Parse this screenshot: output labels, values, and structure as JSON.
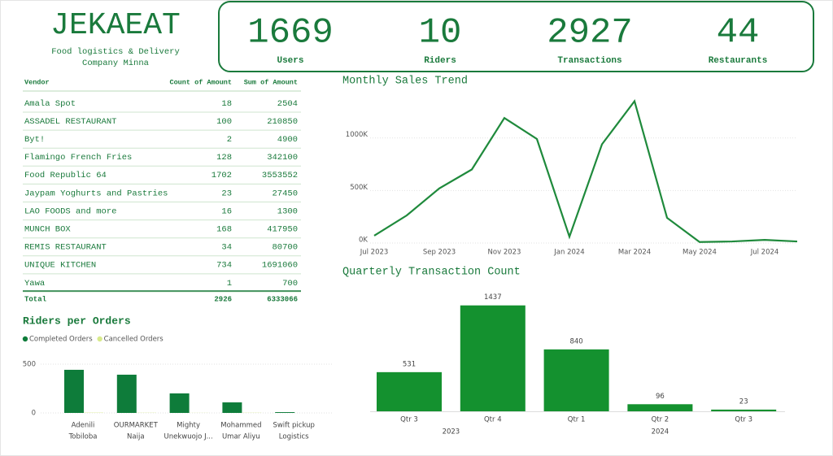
{
  "header": {
    "title": "JEKAEAT",
    "subtitle": [
      "Food logistics & Delivery",
      "Company Minna"
    ]
  },
  "kpis": [
    {
      "value": 1669,
      "label": "Users"
    },
    {
      "value": 10,
      "label": "Riders"
    },
    {
      "value": 2927,
      "label": "Transactions"
    },
    {
      "value": 44,
      "label": "Restaurants"
    }
  ],
  "table": {
    "headers": [
      "Vendor",
      "Count of Amount",
      "Sum of Amount"
    ],
    "rows": [
      [
        "Amala Spot",
        18,
        2504
      ],
      [
        "ASSADEL RESTAURANT",
        100,
        210850
      ],
      [
        "Byt!",
        2,
        4900
      ],
      [
        "Flamingo French Fries",
        128,
        342100
      ],
      [
        "Food Republic 64",
        1702,
        3553552
      ],
      [
        "Jaypam Yoghurts and Pastries",
        23,
        27450
      ],
      [
        "LAO FOODS and more",
        16,
        1300
      ],
      [
        "MUNCH BOX",
        168,
        417950
      ],
      [
        "REMIS RESTAURANT",
        34,
        80700
      ],
      [
        "UNIQUE KITCHEN",
        734,
        1691060
      ],
      [
        "Yawa",
        1,
        700
      ]
    ],
    "total": [
      "Total",
      2926,
      6333066
    ]
  },
  "chart_data": [
    {
      "type": "line",
      "title": "Monthly Sales Trend",
      "color": "#1f8a3c",
      "x": [
        "2023-07",
        "2023-08",
        "2023-09",
        "2023-10",
        "2023-11",
        "2023-12",
        "2024-01",
        "2024-02",
        "2024-03",
        "2024-04",
        "2024-05",
        "2024-06",
        "2024-07",
        "2024-08"
      ],
      "values": [
        70000,
        263000,
        520000,
        700000,
        1190000,
        990000,
        60000,
        940000,
        1350000,
        240000,
        10000,
        15000,
        30000,
        15000
      ],
      "xticks": [
        {
          "value": "2023-07",
          "label": "Jul 2023"
        },
        {
          "value": "2023-09",
          "label": "Sep 2023"
        },
        {
          "value": "2023-11",
          "label": "Nov 2023"
        },
        {
          "value": "2024-01",
          "label": "Jan 2024"
        },
        {
          "value": "2024-03",
          "label": "Mar 2024"
        },
        {
          "value": "2024-05",
          "label": "May 2024"
        },
        {
          "value": "2024-07",
          "label": "Jul 2024"
        }
      ],
      "ylim": [
        0,
        1400000
      ],
      "yticks": [
        {
          "value": 0,
          "label": "0K"
        },
        {
          "value": 500000,
          "label": "500K"
        },
        {
          "value": 1000000,
          "label": "1000K"
        }
      ],
      "grid": true
    },
    {
      "type": "bar",
      "title": "Quarterly Transaction Count",
      "color": "#14912f",
      "categories": [
        "Qtr 3",
        "Qtr 4",
        "Qtr 1",
        "Qtr 2",
        "Qtr 3"
      ],
      "years": [
        "2023",
        "2023",
        "2024",
        "2024",
        "2024"
      ],
      "values": [
        531,
        1437,
        840,
        96,
        23
      ],
      "ylim": [
        0,
        1500
      ]
    },
    {
      "type": "grouped_bar",
      "title": "Riders per Orders",
      "categories": [
        [
          "Adenili",
          "Tobiloba"
        ],
        [
          "OURMARKET",
          "Naija"
        ],
        [
          "Mighty",
          "Unekwuojo J..."
        ],
        [
          "Mohammed",
          "Umar Aliyu"
        ],
        [
          "Swift pickup",
          "Logistics"
        ]
      ],
      "series": [
        {
          "name": "Completed Orders",
          "color": "#0e7c3a",
          "values": [
            442,
            392,
            200,
            108,
            8
          ]
        },
        {
          "name": "Cancelled Orders",
          "color": "#d8ea8c",
          "values": [
            3,
            2,
            1,
            2,
            0
          ]
        }
      ],
      "ylim": [
        0,
        570
      ],
      "yticks": [
        0,
        500
      ],
      "grid": true,
      "legend": "top-left"
    }
  ]
}
